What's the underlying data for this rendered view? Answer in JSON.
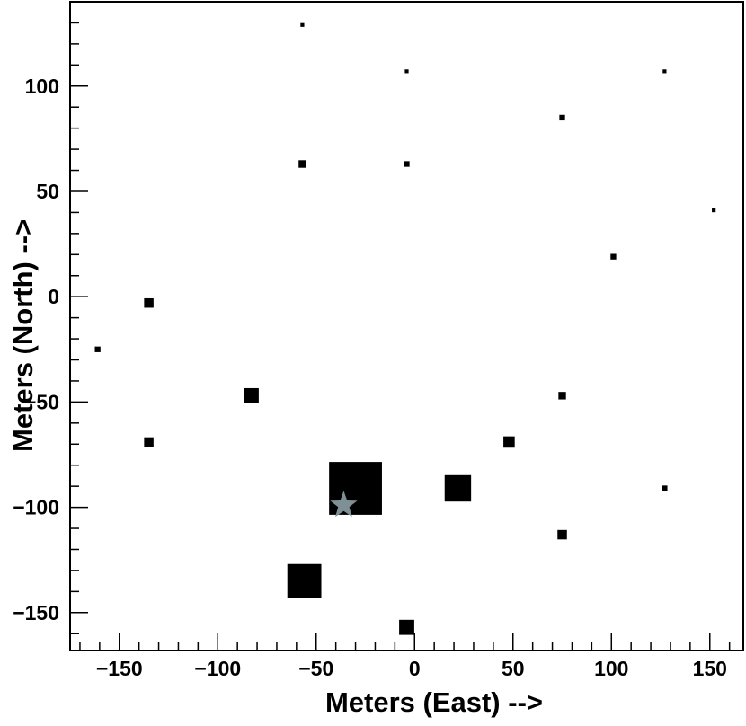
{
  "chart_data": {
    "type": "scatter",
    "xlabel": "Meters (East) -->",
    "ylabel": "Meters (North) -->",
    "xlim": [
      -175,
      167
    ],
    "ylim": [
      -168,
      140
    ],
    "x_ticks": [
      -150,
      -100,
      -50,
      0,
      50,
      100,
      150
    ],
    "y_ticks": [
      -150,
      -100,
      -50,
      0,
      50,
      100
    ],
    "x_tick_labels": [
      "−150",
      "−100",
      "−50",
      "0",
      "50",
      "100",
      "150"
    ],
    "y_tick_labels": [
      "−150",
      "−100",
      "−50",
      "0",
      "50",
      "100"
    ],
    "grid": false,
    "marker": "square",
    "marker_color": "#000000",
    "points": [
      {
        "x": -57,
        "y": 129,
        "size": 1
      },
      {
        "x": -4,
        "y": 107,
        "size": 1
      },
      {
        "x": 127,
        "y": 107,
        "size": 1
      },
      {
        "x": 75,
        "y": 85,
        "size": 1.5
      },
      {
        "x": -57,
        "y": 63,
        "size": 2
      },
      {
        "x": -4,
        "y": 63,
        "size": 1.5
      },
      {
        "x": 152,
        "y": 41,
        "size": 1
      },
      {
        "x": 101,
        "y": 19,
        "size": 1.5
      },
      {
        "x": -135,
        "y": -3,
        "size": 2.5
      },
      {
        "x": -161,
        "y": -25,
        "size": 1.5
      },
      {
        "x": -83,
        "y": -47,
        "size": 4
      },
      {
        "x": 75,
        "y": -47,
        "size": 2
      },
      {
        "x": -135,
        "y": -69,
        "size": 2.5
      },
      {
        "x": 48,
        "y": -69,
        "size": 3
      },
      {
        "x": -30,
        "y": -91,
        "size": 14
      },
      {
        "x": 22,
        "y": -91,
        "size": 7
      },
      {
        "x": 127,
        "y": -91,
        "size": 1.5
      },
      {
        "x": 75,
        "y": -113,
        "size": 2.5
      },
      {
        "x": -56,
        "y": -135,
        "size": 9
      },
      {
        "x": -4,
        "y": -157,
        "size": 4
      }
    ],
    "core": {
      "x": -36,
      "y": -99,
      "marker": "star",
      "color": "#7f8f96"
    }
  }
}
